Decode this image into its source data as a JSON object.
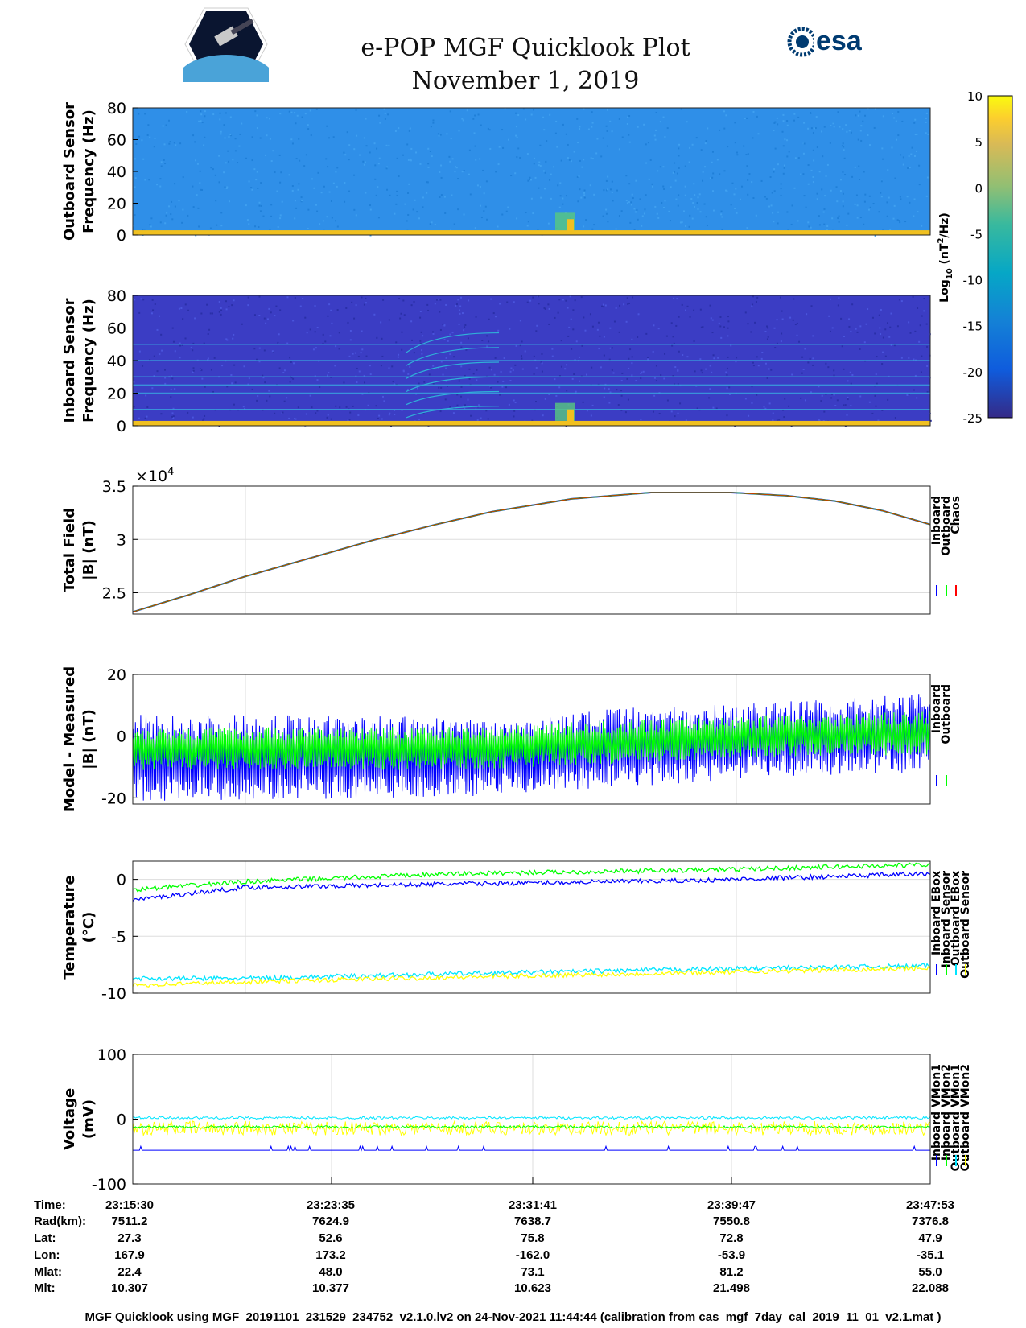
{
  "header": {
    "title": "e-POP MGF Quicklook Plot",
    "date": "November 1, 2019",
    "esa_logo": "esa",
    "cassiope_logo": "CASSIOPE"
  },
  "colors": {
    "inboard": "#0000ff",
    "outboard": "#00ff00",
    "chaos": "#ff0000",
    "cyan": "#00e5ff",
    "yellow": "#ffff00",
    "spec_outboard": "#2f8fe8",
    "spec_inboard": "#3b3dc4",
    "band": "#f0c020"
  },
  "chart_data": [
    {
      "type": "heatmap",
      "name": "outboard-spectrogram",
      "ylabel": [
        "Outboard Sensor",
        "Frequency (Hz)"
      ],
      "ylim": [
        0,
        80
      ],
      "yticks": [
        "80",
        "60",
        "40",
        "20",
        "0"
      ]
    },
    {
      "type": "heatmap",
      "name": "inboard-spectrogram",
      "ylabel": [
        "Inboard Sensor",
        "Frequency (Hz)"
      ],
      "ylim": [
        0,
        80
      ],
      "yticks": [
        "80",
        "60",
        "40",
        "20",
        "0"
      ],
      "lines_hz": [
        50,
        40,
        30,
        25,
        20,
        10
      ]
    },
    {
      "type": "colorbar",
      "label": "Log10 (nT^2/Hz)",
      "label_main": "Log",
      "label_sub": "10",
      "label_rest": " (nT",
      "label_sup": "2",
      "label_end": "/Hz)",
      "range": [
        -25,
        10
      ],
      "ticks": [
        "10",
        "5",
        "0",
        "-5",
        "-10",
        "-15",
        "-20",
        "-25"
      ]
    },
    {
      "type": "line",
      "name": "total-field",
      "ylabel": [
        "Total Field",
        "|B| (nT)"
      ],
      "ylim": [
        2.3,
        3.5
      ],
      "yticks": [
        "3.5",
        "3",
        "2.5"
      ],
      "multiplier": "×10",
      "multiplier_exp": "4",
      "legend": [
        "Inboard",
        "Outboard",
        "Chaos"
      ],
      "x": [
        0,
        0.07,
        0.14,
        0.22,
        0.3,
        0.38,
        0.45,
        0.55,
        0.65,
        0.75,
        0.82,
        0.88,
        0.94,
        1.0
      ],
      "y": [
        2.32,
        2.48,
        2.65,
        2.82,
        2.99,
        3.14,
        3.26,
        3.38,
        3.44,
        3.44,
        3.41,
        3.36,
        3.27,
        3.14
      ]
    },
    {
      "type": "line",
      "name": "model-measured",
      "ylabel": [
        "Model - Measured",
        "|B| (nT)"
      ],
      "ylim": [
        -22,
        20
      ],
      "yticks": [
        "20",
        "0",
        "-20"
      ],
      "legend": [
        "Inboard",
        "Outboard"
      ],
      "x": [
        0,
        0.2,
        0.4,
        0.5,
        0.6,
        0.8,
        1.0
      ],
      "inboard_center": [
        -7,
        -7,
        -7,
        -6,
        -4,
        -1,
        1
      ],
      "inboard_amp": [
        14,
        14,
        13,
        12,
        13,
        12,
        13
      ],
      "outboard_center": [
        -4,
        -4,
        -4,
        -3,
        -2,
        0,
        1
      ],
      "outboard_amp": [
        7,
        7,
        7,
        7,
        7,
        7,
        7
      ]
    },
    {
      "type": "line",
      "name": "temperature",
      "ylabel": [
        "Temperature",
        "(°C)"
      ],
      "ylim": [
        -10,
        1.6
      ],
      "yticks": [
        "0",
        "-5",
        "-10"
      ],
      "legend": [
        "Inboard EBox",
        "Inboard Sensor",
        "Outboard EBox",
        "Outboard Sensor"
      ],
      "x": [
        0,
        0.14,
        0.4,
        0.7,
        1.0
      ],
      "series": [
        {
          "name": "Inboard EBox",
          "values": [
            -1.8,
            -0.7,
            -0.4,
            -0.1,
            0.5
          ]
        },
        {
          "name": "Inboard Sensor",
          "values": [
            -0.9,
            -0.2,
            0.5,
            0.8,
            1.3
          ]
        },
        {
          "name": "Outboard EBox",
          "values": [
            -8.7,
            -8.7,
            -8.3,
            -7.9,
            -7.6
          ]
        },
        {
          "name": "Outboard Sensor",
          "values": [
            -9.3,
            -9.0,
            -8.6,
            -8.2,
            -7.8
          ]
        }
      ]
    },
    {
      "type": "line",
      "name": "voltage",
      "ylabel": [
        "Voltage",
        "(mV)"
      ],
      "ylim": [
        -100,
        100
      ],
      "yticks": [
        "100",
        "0",
        "-100"
      ],
      "legend": [
        "Inboard VMon1",
        "Inboard VMon2",
        "Outboard VMon1",
        "Outboard VMon2"
      ],
      "series": [
        {
          "name": "Inboard VMon1",
          "value": -48
        },
        {
          "name": "Inboard VMon2",
          "value": -12
        },
        {
          "name": "Outboard VMon1",
          "value": 2
        },
        {
          "name": "Outboard VMon2",
          "value": -14
        }
      ]
    }
  ],
  "table": {
    "labels": [
      "Time:",
      "Rad(km):",
      "Lat:",
      "Lon:",
      "Mlat:",
      "Mlt:"
    ],
    "columns": [
      [
        "23:15:30",
        "7511.2",
        "27.3",
        "167.9",
        "22.4",
        "10.307"
      ],
      [
        "23:23:35",
        "7624.9",
        "52.6",
        "173.2",
        "48.0",
        "10.377"
      ],
      [
        "23:31:41",
        "7638.7",
        "75.8",
        "-162.0",
        "73.1",
        "10.623"
      ],
      [
        "23:39:47",
        "7550.8",
        "72.8",
        "-53.9",
        "81.2",
        "21.498"
      ],
      [
        "23:47:53",
        "7376.8",
        "47.9",
        "-35.1",
        "55.0",
        "22.088"
      ]
    ]
  },
  "footer": "MGF Quicklook using MGF_20191101_231529_234752_v2.1.0.lv2 on 24-Nov-2021 11:44:44 (calibration from cas_mgf_7day_cal_2019_11_01_v2.1.mat )"
}
